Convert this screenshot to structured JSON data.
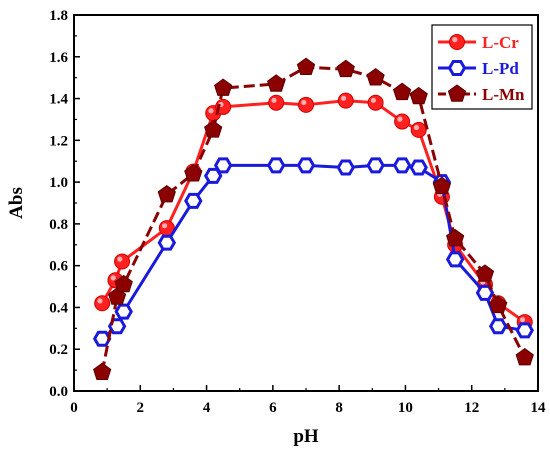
{
  "chart_data": {
    "type": "line",
    "title": "",
    "xlabel": "pH",
    "ylabel": "Abs",
    "xlim": [
      0,
      14
    ],
    "ylim": [
      0.0,
      1.8
    ],
    "xticks": [
      "0",
      "2",
      "4",
      "6",
      "8",
      "10",
      "12",
      "14"
    ],
    "yticks": [
      "0.0",
      "0.2",
      "0.4",
      "0.6",
      "0.8",
      "1.0",
      "1.2",
      "1.4",
      "1.6",
      "1.8"
    ],
    "grid": false,
    "legend_position": "top-right",
    "series": [
      {
        "name": "L-Cr",
        "color": "#ff2020",
        "marker": "circle",
        "line_style": "solid",
        "x": [
          0.85,
          1.25,
          1.45,
          2.8,
          3.6,
          4.2,
          4.5,
          6.1,
          7.0,
          8.2,
          9.1,
          9.9,
          10.4,
          11.1,
          11.5,
          12.4,
          12.8,
          13.6
        ],
        "y": [
          0.42,
          0.53,
          0.62,
          0.78,
          1.05,
          1.33,
          1.36,
          1.38,
          1.37,
          1.39,
          1.38,
          1.29,
          1.25,
          0.93,
          0.7,
          0.51,
          0.42,
          0.33
        ]
      },
      {
        "name": "L-Pd",
        "color": "#1a1adc",
        "marker": "hexagon",
        "line_style": "solid",
        "x": [
          0.85,
          1.3,
          1.5,
          2.8,
          3.6,
          4.2,
          4.5,
          6.1,
          7.0,
          8.2,
          9.1,
          9.9,
          10.4,
          11.1,
          11.5,
          12.4,
          12.8,
          13.6
        ],
        "y": [
          0.25,
          0.31,
          0.38,
          0.71,
          0.91,
          1.03,
          1.08,
          1.08,
          1.08,
          1.07,
          1.08,
          1.08,
          1.07,
          1.0,
          0.63,
          0.47,
          0.31,
          0.29
        ]
      },
      {
        "name": "L-Mn",
        "color": "#8b0000",
        "marker": "pentagon",
        "line_style": "dashed",
        "x": [
          0.85,
          1.3,
          1.5,
          2.8,
          3.6,
          4.2,
          4.5,
          6.1,
          7.0,
          8.2,
          9.1,
          9.9,
          10.4,
          11.1,
          11.5,
          12.4,
          12.8,
          13.6
        ],
        "y": [
          0.09,
          0.45,
          0.51,
          0.94,
          1.04,
          1.25,
          1.45,
          1.47,
          1.55,
          1.54,
          1.5,
          1.43,
          1.41,
          0.98,
          0.73,
          0.56,
          0.41,
          0.16
        ]
      }
    ]
  }
}
